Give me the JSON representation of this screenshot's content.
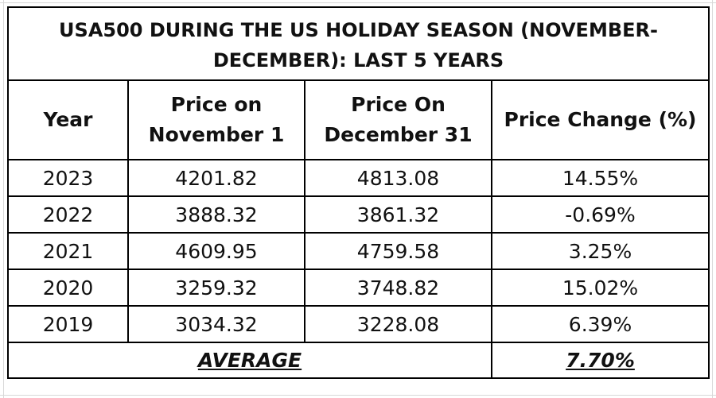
{
  "table": {
    "title": "USA500 DURING THE US HOLIDAY SEASON (NOVEMBER-DECEMBER): LAST 5 YEARS",
    "headers": {
      "year": "Year",
      "nov1": "Price on November 1",
      "dec31": "Price On December 31",
      "change": "Price Change (%)"
    },
    "rows": [
      {
        "year": "2023",
        "nov1": "4201.82",
        "dec31": "4813.08",
        "change": "14.55%"
      },
      {
        "year": "2022",
        "nov1": "3888.32",
        "dec31": "3861.32",
        "change": "-0.69%"
      },
      {
        "year": "2021",
        "nov1": "4609.95",
        "dec31": "4759.58",
        "change": "3.25%"
      },
      {
        "year": "2020",
        "nov1": "3259.32",
        "dec31": "3748.82",
        "change": "15.02%"
      },
      {
        "year": "2019",
        "nov1": "3034.32",
        "dec31": "3228.08",
        "change": "6.39%"
      }
    ],
    "average": {
      "label": "AVERAGE",
      "value": "7.70%"
    }
  }
}
